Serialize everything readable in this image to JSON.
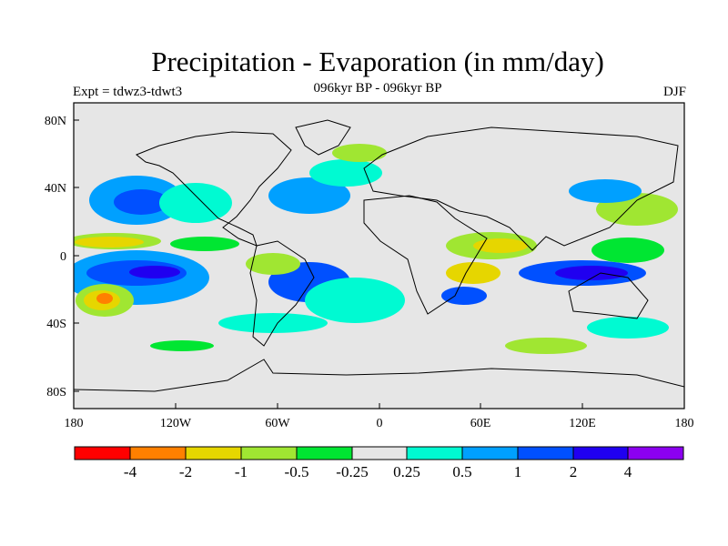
{
  "plot": {
    "title": "Precipitation - Evaporation (in mm/day)",
    "subtitle": "096kyr BP - 096kyr BP",
    "left_label": "Expt = tdwz3-tdwt3",
    "right_label": "DJF"
  },
  "axes": {
    "lat_ticks": [
      "80N",
      "40N",
      "0",
      "40S",
      "80S"
    ],
    "lon_ticks": [
      "180",
      "120W",
      "60W",
      "0",
      "60E",
      "120E",
      "180"
    ]
  },
  "colorbar": {
    "colors": [
      "#ff0000",
      "#ff8000",
      "#e6d600",
      "#a0e632",
      "#00e632",
      "#e6e6e6",
      "#00fad2",
      "#00a0ff",
      "#0050ff",
      "#2000f0",
      "#8c00f0"
    ],
    "labels": [
      "-4",
      "-2",
      "-1",
      "-0.5",
      "-0.25",
      "0.25",
      "0.5",
      "1",
      "2",
      "4"
    ]
  }
}
